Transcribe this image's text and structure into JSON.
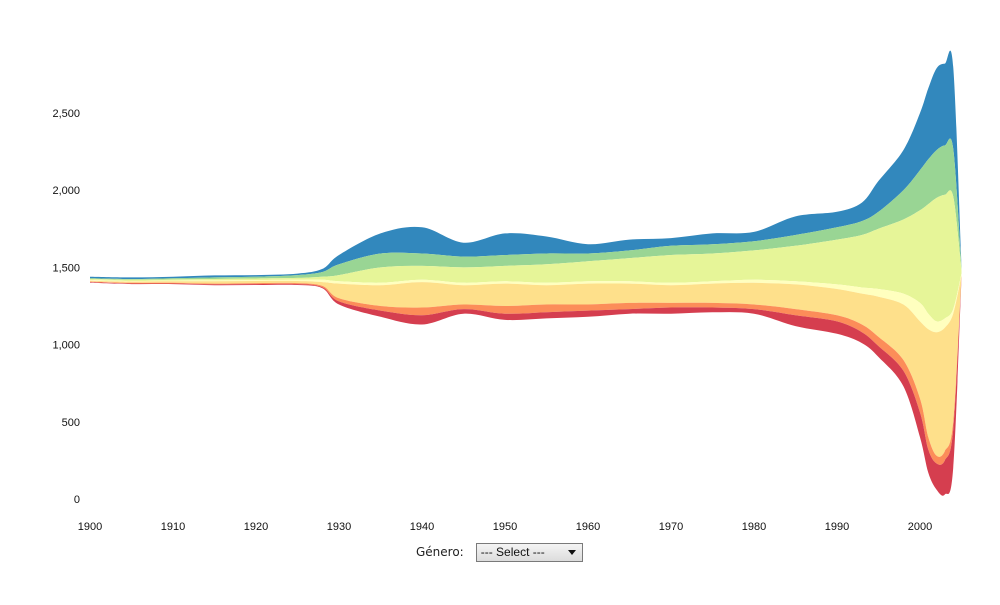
{
  "chart_data": {
    "type": "area",
    "subtype": "streamgraph",
    "x_axis": {
      "ticks": [
        "1900",
        "1910",
        "1920",
        "1930",
        "1940",
        "1950",
        "1960",
        "1970",
        "1980",
        "1990",
        "2000"
      ],
      "range": [
        1900,
        2005
      ]
    },
    "y_axis": {
      "ticks": [
        "0",
        "500",
        "1,000",
        "1,500",
        "2,000",
        "2,500"
      ],
      "range": [
        -100,
        2900
      ]
    },
    "grid": false,
    "legend": "none",
    "layer_order_top_to_bottom": [
      "#3288bd",
      "#99d594",
      "#e6f598",
      "#ffffbf",
      "#fee08b",
      "#fc8d59",
      "#d53e4f"
    ],
    "boundaries": {
      "x": [
        1900,
        1905,
        1910,
        1915,
        1920,
        1925,
        1928,
        1930,
        1935,
        1940,
        1945,
        1950,
        1955,
        1960,
        1965,
        1970,
        1975,
        1980,
        1985,
        1990,
        1993,
        1995,
        1998,
        2000,
        2001,
        2002,
        2003,
        2004,
        2005
      ],
      "b0": [
        1440,
        1435,
        1440,
        1448,
        1450,
        1460,
        1490,
        1580,
        1720,
        1760,
        1660,
        1720,
        1700,
        1650,
        1680,
        1690,
        1720,
        1730,
        1830,
        1860,
        1920,
        2060,
        2260,
        2500,
        2660,
        2790,
        2820,
        2800,
        1500
      ],
      "b1": [
        1430,
        1425,
        1430,
        1435,
        1440,
        1450,
        1470,
        1520,
        1590,
        1590,
        1570,
        1580,
        1590,
        1590,
        1610,
        1640,
        1650,
        1670,
        1710,
        1760,
        1800,
        1860,
        2000,
        2130,
        2200,
        2260,
        2290,
        2270,
        1500
      ],
      "b2": [
        1425,
        1420,
        1422,
        1425,
        1428,
        1432,
        1440,
        1450,
        1500,
        1510,
        1500,
        1510,
        1520,
        1540,
        1560,
        1580,
        1590,
        1610,
        1640,
        1680,
        1710,
        1750,
        1810,
        1870,
        1910,
        1950,
        1970,
        1960,
        1480
      ],
      "b3": [
        1418,
        1412,
        1415,
        1416,
        1418,
        1420,
        1420,
        1410,
        1400,
        1420,
        1400,
        1410,
        1400,
        1410,
        1410,
        1400,
        1410,
        1420,
        1410,
        1390,
        1370,
        1360,
        1330,
        1270,
        1200,
        1150,
        1170,
        1230,
        1460
      ],
      "b4": [
        1414,
        1408,
        1410,
        1410,
        1412,
        1412,
        1405,
        1395,
        1385,
        1405,
        1385,
        1395,
        1385,
        1395,
        1395,
        1385,
        1395,
        1400,
        1390,
        1360,
        1330,
        1310,
        1260,
        1150,
        1100,
        1080,
        1110,
        1200,
        1450
      ],
      "b5": [
        1408,
        1400,
        1400,
        1395,
        1398,
        1398,
        1380,
        1300,
        1250,
        1240,
        1260,
        1250,
        1260,
        1260,
        1270,
        1270,
        1270,
        1260,
        1230,
        1190,
        1130,
        1050,
        900,
        650,
        400,
        280,
        310,
        500,
        1440
      ],
      "b6": [
        1405,
        1396,
        1396,
        1390,
        1392,
        1392,
        1372,
        1280,
        1220,
        1190,
        1230,
        1200,
        1210,
        1220,
        1230,
        1240,
        1240,
        1230,
        1190,
        1150,
        1080,
        990,
        830,
        560,
        320,
        230,
        250,
        450,
        1440
      ],
      "b7": [
        1400,
        1392,
        1392,
        1385,
        1386,
        1386,
        1365,
        1260,
        1180,
        1130,
        1200,
        1160,
        1170,
        1180,
        1200,
        1200,
        1210,
        1200,
        1120,
        1070,
        1010,
        920,
        730,
        400,
        170,
        60,
        30,
        200,
        1430
      ]
    }
  },
  "controls": {
    "genre_label": "Género:",
    "genre_select": {
      "selected": "--- Select ---"
    }
  }
}
